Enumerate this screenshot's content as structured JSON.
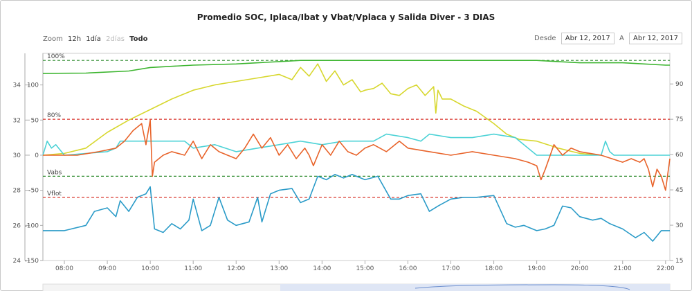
{
  "title": "Promedio SOC, Iplaca/Ibat y Vbat/Vplaca y Salida Diver - 3 DIAS",
  "zoom": {
    "label": "Zoom",
    "buttons": [
      {
        "label": "12h",
        "state": "normal"
      },
      {
        "label": "1día",
        "state": "normal"
      },
      {
        "label": "2días",
        "state": "disabled"
      },
      {
        "label": "Todo",
        "state": "selected"
      }
    ]
  },
  "range": {
    "from_label": "Desde",
    "from": "Abr 12, 2017",
    "to_label": "A",
    "to": "Abr 12, 2017"
  },
  "colors": {
    "soc": "#3cb52f",
    "voltage": "#d7d72e",
    "ibat": "#e8632a",
    "iplaca": "#4cd2d6",
    "diver": "#2a9bc8",
    "green_line": "#2e8b2e",
    "red_line": "#d9342b"
  },
  "chart_data": {
    "type": "line",
    "x_ticks": [
      "08:00",
      "09:00",
      "10:00",
      "11:00",
      "12:00",
      "13:00",
      "14:00",
      "15:00",
      "16:00",
      "17:00",
      "18:00",
      "19:00",
      "20:00",
      "21:00",
      "22:00"
    ],
    "axes": {
      "left_outer": {
        "ticks": [
          "24",
          "26",
          "28",
          "30",
          "32",
          "34"
        ],
        "range": [
          24,
          35.8
        ]
      },
      "left_inner": {
        "ticks": [
          "-150",
          "-100",
          "-50",
          "0",
          "50",
          "100"
        ],
        "range": [
          -150,
          145
        ]
      },
      "right": {
        "ticks": [
          "15",
          "30",
          "45",
          "60",
          "75",
          "90"
        ],
        "range": [
          15,
          103
        ]
      }
    },
    "plot_lines": [
      {
        "label": "100%",
        "value": 100,
        "axis": "right",
        "color": "#2e8b2e"
      },
      {
        "label": "80%",
        "value": 75,
        "axis": "right",
        "color": "#d9342b"
      },
      {
        "label": "Vabs",
        "value": 28.8,
        "axis": "left_outer",
        "color": "#2e8b2e"
      },
      {
        "label": "Vflot",
        "value": 27.6,
        "axis": "left_outer",
        "color": "#d9342b"
      }
    ],
    "series": [
      {
        "key": "soc",
        "axis": "right",
        "x": [
          7.5,
          8.5,
          9.5,
          10.0,
          10.5,
          11.0,
          12.0,
          13.0,
          13.5,
          14.0,
          15.0,
          16.0,
          17.0,
          18.0,
          19.0,
          19.5,
          20.0,
          21.0,
          21.5,
          22.0,
          22.1
        ],
        "y": [
          94.5,
          94.6,
          95.5,
          97,
          97.5,
          98,
          98.5,
          99.5,
          100,
          100,
          100,
          100,
          100,
          100,
          100,
          99.5,
          99,
          99,
          98.5,
          98,
          98
        ]
      },
      {
        "key": "voltage",
        "axis": "left_outer",
        "x": [
          7.5,
          8.0,
          8.5,
          9.0,
          9.5,
          10.0,
          10.5,
          11.0,
          11.5,
          12.0,
          12.5,
          13.0,
          13.3,
          13.5,
          13.7,
          13.9,
          14.1,
          14.3,
          14.5,
          14.7,
          14.9,
          15.0,
          15.2,
          15.4,
          15.6,
          15.8,
          16.0,
          16.2,
          16.4,
          16.6,
          16.65,
          16.7,
          16.8,
          17.0,
          17.3,
          17.6,
          18.0,
          18.3,
          18.6,
          19.0,
          19.5,
          20.0,
          20.5
        ],
        "y": [
          30,
          30.1,
          30.4,
          31.3,
          32,
          32.6,
          33.2,
          33.7,
          34,
          34.2,
          34.4,
          34.6,
          34.3,
          35,
          34.5,
          35.2,
          34.2,
          34.8,
          34,
          34.3,
          33.6,
          33.7,
          33.8,
          34.1,
          33.5,
          33.4,
          33.8,
          34,
          33.4,
          33.9,
          32.4,
          33.7,
          33.2,
          33.2,
          32.8,
          32.5,
          31.8,
          31.2,
          30.9,
          30.8,
          30.4,
          30.1,
          30
        ]
      },
      {
        "key": "ibat",
        "axis": "left_inner",
        "x": [
          7.5,
          8.3,
          8.8,
          9.2,
          9.4,
          9.6,
          9.8,
          9.9,
          10.0,
          10.05,
          10.1,
          10.3,
          10.5,
          10.8,
          11.0,
          11.2,
          11.4,
          11.6,
          11.8,
          12.0,
          12.2,
          12.4,
          12.6,
          12.8,
          13.0,
          13.2,
          13.4,
          13.6,
          13.7,
          13.8,
          14.0,
          14.2,
          14.4,
          14.6,
          14.8,
          15.0,
          15.2,
          15.5,
          15.8,
          16.0,
          16.5,
          17.0,
          17.5,
          18.0,
          18.5,
          18.8,
          19.0,
          19.1,
          19.2,
          19.4,
          19.6,
          19.8,
          20.0,
          20.5,
          21.0,
          21.2,
          21.4,
          21.5,
          21.6,
          21.7,
          21.8,
          21.9,
          22.0,
          22.1
        ],
        "y": [
          0,
          0,
          5,
          10,
          20,
          35,
          45,
          15,
          50,
          -30,
          -10,
          0,
          5,
          0,
          20,
          -5,
          15,
          5,
          0,
          -5,
          10,
          30,
          10,
          25,
          0,
          15,
          -5,
          10,
          0,
          -15,
          15,
          0,
          20,
          5,
          0,
          10,
          15,
          5,
          20,
          10,
          5,
          0,
          5,
          0,
          -5,
          -10,
          -15,
          -35,
          -20,
          15,
          0,
          10,
          5,
          0,
          -10,
          -5,
          -10,
          -5,
          -20,
          -45,
          -20,
          -30,
          -50,
          -5
        ]
      },
      {
        "key": "iplaca",
        "axis": "left_inner",
        "x": [
          7.5,
          7.6,
          7.7,
          7.8,
          8.0,
          9.0,
          9.2,
          9.3,
          9.5,
          10.0,
          10.2,
          10.5,
          10.8,
          11.0,
          11.5,
          12.0,
          12.5,
          13.0,
          13.5,
          14.0,
          14.5,
          15.0,
          15.2,
          15.5,
          16.0,
          16.3,
          16.5,
          17.0,
          17.5,
          18.0,
          18.5,
          19.0,
          19.5,
          20.0,
          20.5,
          20.6,
          20.7,
          20.8,
          21.0,
          22.1
        ],
        "y": [
          0,
          20,
          10,
          15,
          0,
          5,
          10,
          20,
          20,
          20,
          20,
          20,
          20,
          10,
          15,
          5,
          10,
          15,
          20,
          15,
          20,
          20,
          20,
          30,
          25,
          20,
          30,
          25,
          25,
          30,
          25,
          0,
          0,
          0,
          0,
          20,
          5,
          0,
          0,
          0
        ]
      },
      {
        "key": "diver",
        "axis": "left_outer",
        "x": [
          7.5,
          8.0,
          8.5,
          8.7,
          9.0,
          9.2,
          9.3,
          9.5,
          9.7,
          9.9,
          10.0,
          10.1,
          10.3,
          10.5,
          10.7,
          10.9,
          11.0,
          11.2,
          11.4,
          11.6,
          11.8,
          12.0,
          12.3,
          12.5,
          12.6,
          12.8,
          13.0,
          13.3,
          13.5,
          13.7,
          13.9,
          14.1,
          14.3,
          14.5,
          14.7,
          15.0,
          15.3,
          15.6,
          15.8,
          16.0,
          16.3,
          16.5,
          16.7,
          17.0,
          17.3,
          17.6,
          18.0,
          18.3,
          18.5,
          18.7,
          19.0,
          19.2,
          19.4,
          19.6,
          19.8,
          20.0,
          20.3,
          20.5,
          20.7,
          21.0,
          21.3,
          21.5,
          21.7,
          21.9,
          22.1
        ],
        "y": [
          25.7,
          25.7,
          26,
          26.8,
          27,
          26.5,
          27.4,
          26.8,
          27.6,
          27.8,
          28.2,
          25.8,
          25.6,
          26.1,
          25.8,
          26.3,
          27.5,
          25.7,
          26,
          27.6,
          26.3,
          26,
          26.2,
          27.6,
          26.2,
          27.8,
          28,
          28.1,
          27.3,
          27.5,
          28.8,
          28.6,
          28.9,
          28.7,
          28.9,
          28.6,
          28.8,
          27.5,
          27.5,
          27.7,
          27.8,
          26.8,
          27.1,
          27.5,
          27.6,
          27.6,
          27.7,
          26.1,
          25.9,
          26,
          25.7,
          25.8,
          26,
          27.1,
          27,
          26.5,
          26.3,
          26.4,
          26.1,
          25.8,
          25.3,
          25.6,
          25.1,
          25.7,
          25.7
        ]
      }
    ]
  }
}
